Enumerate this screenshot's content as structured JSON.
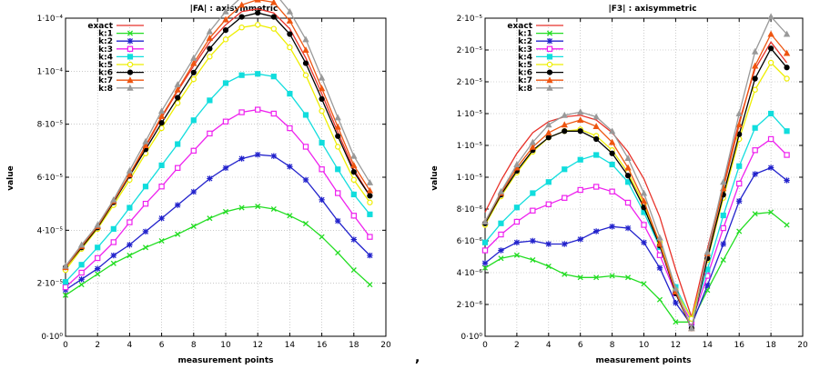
{
  "separator": ",",
  "chart_data": [
    {
      "type": "line",
      "title": "|FA| : axisymmetric",
      "xlabel": "measurement points",
      "ylabel": "value",
      "xlim": [
        0,
        20
      ],
      "ylim": [
        0,
        0.00012
      ],
      "x_ticks": [
        0,
        2,
        4,
        6,
        8,
        10,
        12,
        14,
        16,
        18,
        20
      ],
      "x_tick_labels": [
        "0",
        "2",
        "4",
        "6",
        "8",
        "10",
        "12",
        "14",
        "16",
        "18",
        "20"
      ],
      "y_ticks": [
        0,
        2e-05,
        4e-05,
        6e-05,
        8e-05,
        0.0001,
        0.00012
      ],
      "y_tick_labels": [
        "0·10⁰",
        "2·10⁻⁵",
        "4·10⁻⁵",
        "6·10⁻⁵",
        "8·10⁻⁵",
        "1·10⁻⁴",
        "1·10⁻⁴"
      ],
      "grid": true,
      "legend_position": "top-left",
      "x": [
        0,
        1,
        2,
        3,
        4,
        5,
        6,
        7,
        8,
        9,
        10,
        11,
        12,
        13,
        14,
        15,
        16,
        17,
        18,
        19
      ],
      "series": [
        {
          "name": "exact",
          "color": "#e8322a",
          "marker": "none",
          "values": [
            2.6e-05,
            3.4e-05,
            4.15e-05,
            5.1e-05,
            6.1e-05,
            7.15e-05,
            8.25e-05,
            9.25e-05,
            0.000102,
            0.000111,
            0.0001175,
            0.0001225,
            0.0001235,
            0.000122,
            0.000116,
            0.000105,
            9.15e-05,
            7.7e-05,
            6.3e-05,
            5.3e-05
          ]
        },
        {
          "name": "k:1",
          "color": "#22dd22",
          "marker": "x",
          "values": [
            1.55e-05,
            1.95e-05,
            2.35e-05,
            2.75e-05,
            3.05e-05,
            3.35e-05,
            3.6e-05,
            3.85e-05,
            4.15e-05,
            4.45e-05,
            4.7e-05,
            4.85e-05,
            4.9e-05,
            4.8e-05,
            4.55e-05,
            4.25e-05,
            3.75e-05,
            3.15e-05,
            2.5e-05,
            1.95e-05
          ]
        },
        {
          "name": "k:2",
          "color": "#2222cc",
          "marker": "star",
          "values": [
            1.75e-05,
            2.15e-05,
            2.55e-05,
            3.05e-05,
            3.45e-05,
            3.95e-05,
            4.45e-05,
            4.95e-05,
            5.45e-05,
            5.95e-05,
            6.35e-05,
            6.7e-05,
            6.85e-05,
            6.8e-05,
            6.4e-05,
            5.9e-05,
            5.15e-05,
            4.35e-05,
            3.65e-05,
            3.05e-05
          ]
        },
        {
          "name": "k:3",
          "color": "#ee22ee",
          "marker": "square",
          "values": [
            1.85e-05,
            2.4e-05,
            2.95e-05,
            3.55e-05,
            4.3e-05,
            5e-05,
            5.65e-05,
            6.35e-05,
            7e-05,
            7.65e-05,
            8.1e-05,
            8.45e-05,
            8.55e-05,
            8.4e-05,
            7.85e-05,
            7.15e-05,
            6.3e-05,
            5.4e-05,
            4.55e-05,
            3.75e-05
          ]
        },
        {
          "name": "k:4",
          "color": "#11dddd",
          "marker": "filled-square",
          "values": [
            2.05e-05,
            2.7e-05,
            3.35e-05,
            4.05e-05,
            4.85e-05,
            5.65e-05,
            6.45e-05,
            7.25e-05,
            8.15e-05,
            8.9e-05,
            9.55e-05,
            9.85e-05,
            9.9e-05,
            9.8e-05,
            9.15e-05,
            8.35e-05,
            7.3e-05,
            6.3e-05,
            5.35e-05,
            4.6e-05
          ]
        },
        {
          "name": "k:5",
          "color": "#eeee00",
          "marker": "circle",
          "values": [
            2.5e-05,
            3.3e-05,
            4.05e-05,
            4.95e-05,
            5.9e-05,
            6.9e-05,
            7.85e-05,
            8.8e-05,
            9.7e-05,
            0.0001055,
            0.000112,
            0.0001165,
            0.0001175,
            0.000116,
            0.000109,
            9.85e-05,
            8.5e-05,
            7.15e-05,
            5.9e-05,
            5.05e-05
          ]
        },
        {
          "name": "k:6",
          "color": "#000000",
          "marker": "filled-circle",
          "values": [
            2.6e-05,
            3.35e-05,
            4.1e-05,
            5.05e-05,
            6.05e-05,
            7.05e-05,
            8.05e-05,
            9e-05,
            9.95e-05,
            0.0001085,
            0.0001155,
            0.0001205,
            0.000122,
            0.0001205,
            0.000114,
            0.000103,
            8.95e-05,
            7.55e-05,
            6.2e-05,
            5.3e-05
          ]
        },
        {
          "name": "k:7",
          "color": "#ee5511",
          "marker": "triangle",
          "values": [
            2.6e-05,
            3.4e-05,
            4.15e-05,
            5.1e-05,
            6.1e-05,
            7.2e-05,
            8.3e-05,
            9.3e-05,
            0.000103,
            0.0001125,
            0.0001195,
            0.000125,
            0.000127,
            0.000126,
            0.000119,
            0.000108,
            9.35e-05,
            7.9e-05,
            6.45e-05,
            5.5e-05
          ]
        },
        {
          "name": "k:8",
          "color": "#999999",
          "marker": "triangle",
          "values": [
            2.65e-05,
            3.45e-05,
            4.2e-05,
            5.15e-05,
            6.25e-05,
            7.35e-05,
            8.5e-05,
            9.5e-05,
            0.000105,
            0.000115,
            0.0001225,
            0.000128,
            0.0001305,
            0.00013,
            0.0001225,
            0.000112,
            9.75e-05,
            8.25e-05,
            6.8e-05,
            5.8e-05
          ]
        }
      ]
    },
    {
      "type": "line",
      "title": "|F3| : axisymmetric",
      "xlabel": "measurement points",
      "ylabel": "value",
      "xlim": [
        0,
        20
      ],
      "ylim": [
        0,
        2e-05
      ],
      "x_ticks": [
        0,
        2,
        4,
        6,
        8,
        10,
        12,
        14,
        16,
        18,
        20
      ],
      "x_tick_labels": [
        "0",
        "2",
        "4",
        "6",
        "8",
        "10",
        "12",
        "14",
        "16",
        "18",
        "20"
      ],
      "y_ticks": [
        0,
        2e-06,
        4e-06,
        6e-06,
        8e-06,
        1e-05,
        1.2e-05,
        1.4e-05,
        1.6e-05,
        1.8e-05,
        2e-05
      ],
      "y_tick_labels": [
        "0·10⁰",
        "2·10⁻⁶",
        "4·10⁻⁶",
        "6·10⁻⁶",
        "8·10⁻⁶",
        "1·10⁻⁵",
        "1·10⁻⁵",
        "1·10⁻⁵",
        "2·10⁻⁵",
        "2·10⁻⁵",
        "2·10⁻⁵"
      ],
      "grid": true,
      "legend_position": "top-left",
      "x": [
        0,
        1,
        2,
        3,
        4,
        5,
        6,
        7,
        8,
        9,
        10,
        11,
        12,
        13,
        14,
        15,
        16,
        17,
        18,
        19
      ],
      "series": [
        {
          "name": "exact",
          "color": "#e8322a",
          "marker": "none",
          "values": [
            7.8e-06,
            9.8e-06,
            1.15e-05,
            1.28e-05,
            1.35e-05,
            1.38e-05,
            1.39e-05,
            1.36e-05,
            1.28e-05,
            1.16e-05,
            9.9e-06,
            7.5e-06,
            4.2e-06,
            1.2e-06,
            5.5e-06,
            9.5e-06,
            1.35e-05,
            1.68e-05,
            1.85e-05,
            1.72e-05
          ]
        },
        {
          "name": "k:1",
          "color": "#22dd22",
          "marker": "x",
          "values": [
            4.3e-06,
            4.9e-06,
            5.1e-06,
            4.8e-06,
            4.4e-06,
            3.9e-06,
            3.7e-06,
            3.7e-06,
            3.8e-06,
            3.7e-06,
            3.3e-06,
            2.3e-06,
            9e-07,
            9e-07,
            2.9e-06,
            4.8e-06,
            6.6e-06,
            7.7e-06,
            7.8e-06,
            7e-06
          ]
        },
        {
          "name": "k:2",
          "color": "#2222cc",
          "marker": "star",
          "values": [
            4.6e-06,
            5.4e-06,
            5.9e-06,
            6e-06,
            5.8e-06,
            5.8e-06,
            6.1e-06,
            6.6e-06,
            6.9e-06,
            6.8e-06,
            5.9e-06,
            4.3e-06,
            2.1e-06,
            7e-07,
            3.2e-06,
            5.8e-06,
            8.5e-06,
            1.02e-05,
            1.06e-05,
            9.8e-06
          ]
        },
        {
          "name": "k:3",
          "color": "#ee22ee",
          "marker": "square",
          "values": [
            5.4e-06,
            6.4e-06,
            7.2e-06,
            7.9e-06,
            8.3e-06,
            8.7e-06,
            9.2e-06,
            9.4e-06,
            9.1e-06,
            8.4e-06,
            7e-06,
            5.1e-06,
            2.7e-06,
            9e-07,
            3.8e-06,
            6.8e-06,
            9.6e-06,
            1.17e-05,
            1.24e-05,
            1.14e-05
          ]
        },
        {
          "name": "k:4",
          "color": "#11dddd",
          "marker": "filled-square",
          "values": [
            5.9e-06,
            7.1e-06,
            8.1e-06,
            9e-06,
            9.7e-06,
            1.05e-05,
            1.11e-05,
            1.14e-05,
            1.08e-05,
            9.7e-06,
            7.8e-06,
            5.6e-06,
            3.1e-06,
            1.1e-06,
            4.2e-06,
            7.6e-06,
            1.07e-05,
            1.31e-05,
            1.4e-05,
            1.29e-05
          ]
        },
        {
          "name": "k:5",
          "color": "#eeee00",
          "marker": "circle",
          "values": [
            7e-06,
            8.8e-06,
            1.03e-05,
            1.16e-05,
            1.25e-05,
            1.29e-05,
            1.3e-05,
            1.26e-05,
            1.17e-05,
            1.03e-05,
            8.3e-06,
            5.9e-06,
            2.9e-06,
            1.1e-06,
            4.8e-06,
            8.7e-06,
            1.24e-05,
            1.55e-05,
            1.72e-05,
            1.62e-05
          ]
        },
        {
          "name": "k:6",
          "color": "#000000",
          "marker": "filled-circle",
          "values": [
            7.1e-06,
            8.9e-06,
            1.04e-05,
            1.17e-05,
            1.25e-05,
            1.29e-05,
            1.29e-05,
            1.24e-05,
            1.15e-05,
            1.01e-05,
            8.1e-06,
            5.7e-06,
            2.7e-06,
            5e-07,
            4.9e-06,
            8.9e-06,
            1.27e-05,
            1.62e-05,
            1.81e-05,
            1.69e-05
          ]
        },
        {
          "name": "k:7",
          "color": "#ee5511",
          "marker": "triangle",
          "values": [
            7.2e-06,
            9e-06,
            1.06e-05,
            1.19e-05,
            1.28e-05,
            1.33e-05,
            1.36e-05,
            1.32e-05,
            1.22e-05,
            1.06e-05,
            8.5e-06,
            5.8e-06,
            2.8e-06,
            5e-07,
            5.2e-06,
            9.3e-06,
            1.33e-05,
            1.7e-05,
            1.9e-05,
            1.78e-05
          ]
        },
        {
          "name": "k:8",
          "color": "#999999",
          "marker": "triangle",
          "values": [
            7.2e-06,
            9.1e-06,
            1.08e-05,
            1.22e-05,
            1.33e-05,
            1.39e-05,
            1.41e-05,
            1.38e-05,
            1.29e-05,
            1.12e-05,
            9e-06,
            6.2e-06,
            3e-06,
            5e-07,
            5.3e-06,
            9.7e-06,
            1.4e-05,
            1.79e-05,
            2.01e-05,
            1.9e-05
          ]
        }
      ]
    }
  ]
}
